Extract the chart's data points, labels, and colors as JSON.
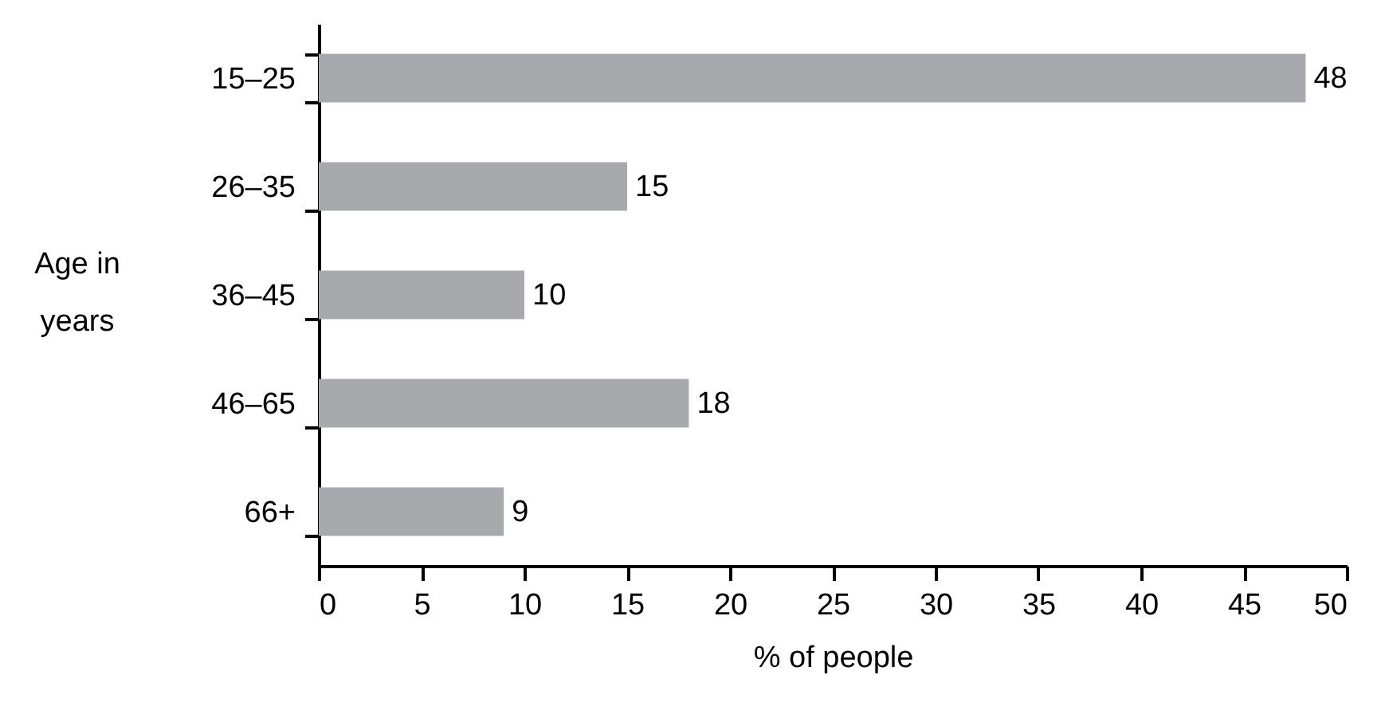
{
  "chart_data": {
    "type": "bar",
    "orientation": "horizontal",
    "xlabel": "% of people",
    "ylabel": "Age in years",
    "categories": [
      "15–25",
      "26–35",
      "36–45",
      "46–65",
      "66+"
    ],
    "values": [
      48,
      15,
      10,
      18,
      9
    ],
    "color": "#a7a9ac",
    "data_labels": true,
    "xlim": [
      0,
      50
    ],
    "xticks": [
      0,
      5,
      10,
      15,
      20,
      25,
      30,
      35,
      40,
      45,
      50
    ],
    "grid": false
  }
}
